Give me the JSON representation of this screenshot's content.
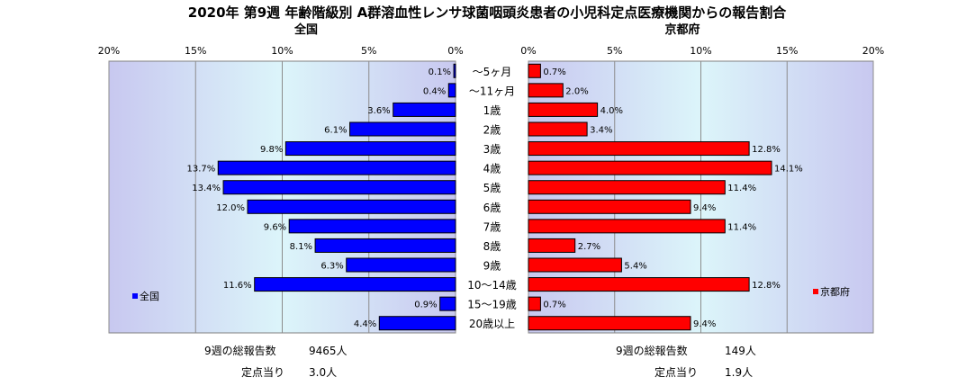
{
  "title": "2020年 第9週 年齢階級別 A群溶血性レンサ球菌咽頭炎患者の小児科定点医療機関からの報告割合",
  "colors": {
    "national_bar": "#0000ff",
    "kyoto_bar": "#ff0000",
    "plot_bg_edge": "#c8c8f0",
    "plot_bg_mid": "#dcf5fa"
  },
  "chart_data": [
    {
      "type": "bar",
      "orientation": "horizontal",
      "direction": "right-to-left",
      "title": "全国",
      "categories": [
        "～5ヶ月",
        "～11ヶ月",
        "1歳",
        "2歳",
        "3歳",
        "4歳",
        "5歳",
        "6歳",
        "7歳",
        "8歳",
        "9歳",
        "10～14歳",
        "15～19歳",
        "20歳以上"
      ],
      "series": [
        {
          "name": "全国",
          "values": [
            0.1,
            0.4,
            3.6,
            6.1,
            9.8,
            13.7,
            13.4,
            12.0,
            9.6,
            8.1,
            6.3,
            11.6,
            0.9,
            4.4
          ],
          "labels": [
            "0.1%",
            "0.4%",
            "3.6%",
            "6.1%",
            "9.8%",
            "13.7%",
            "13.4%",
            "12.0%",
            "9.6%",
            "8.1%",
            "6.3%",
            "11.6%",
            "0.9%",
            "4.4%"
          ]
        }
      ],
      "xlim": [
        0,
        20
      ],
      "xticks": [
        "20%",
        "15%",
        "10%",
        "5%",
        "0%"
      ],
      "grid": true,
      "legend": "bottom-left"
    },
    {
      "type": "bar",
      "orientation": "horizontal",
      "direction": "left-to-right",
      "title": "京都府",
      "categories": [
        "～5ヶ月",
        "～11ヶ月",
        "1歳",
        "2歳",
        "3歳",
        "4歳",
        "5歳",
        "6歳",
        "7歳",
        "8歳",
        "9歳",
        "10～14歳",
        "15～19歳",
        "20歳以上"
      ],
      "series": [
        {
          "name": "京都府",
          "values": [
            0.7,
            2.0,
            4.0,
            3.4,
            12.8,
            14.1,
            11.4,
            9.4,
            11.4,
            2.7,
            5.4,
            12.8,
            0.7,
            9.4
          ],
          "labels": [
            "0.7%",
            "2.0%",
            "4.0%",
            "3.4%",
            "12.8%",
            "14.1%",
            "11.4%",
            "9.4%",
            "11.4%",
            "2.7%",
            "5.4%",
            "12.8%",
            "0.7%",
            "9.4%"
          ]
        }
      ],
      "xlim": [
        0,
        20
      ],
      "xticks": [
        "0%",
        "5%",
        "10%",
        "15%",
        "20%"
      ],
      "grid": true,
      "legend": "bottom-right"
    }
  ],
  "footer": {
    "national": {
      "total_label": "9週の総報告数",
      "total_value": "9465人",
      "per_site_label": "定点当り",
      "per_site_value": "3.0人"
    },
    "kyoto": {
      "total_label": "9週の総報告数",
      "total_value": "149人",
      "per_site_label": "定点当り",
      "per_site_value": "1.9人"
    }
  }
}
